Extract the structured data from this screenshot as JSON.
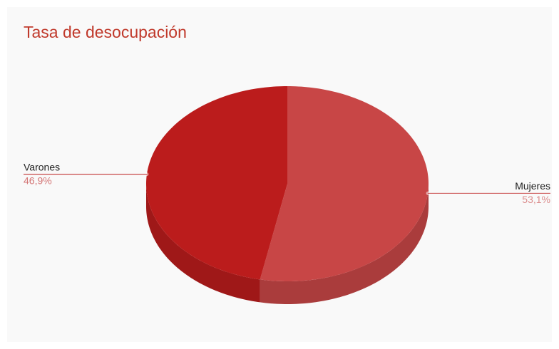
{
  "chart_data": {
    "type": "pie",
    "title": "Tasa de desocupación",
    "categories": [
      "Mujeres",
      "Varones"
    ],
    "values": [
      53.1,
      46.9
    ],
    "value_labels": [
      "53,1%",
      "46,9%"
    ],
    "colors": [
      "#c84646",
      "#bb1c1c"
    ],
    "three_d": true
  }
}
